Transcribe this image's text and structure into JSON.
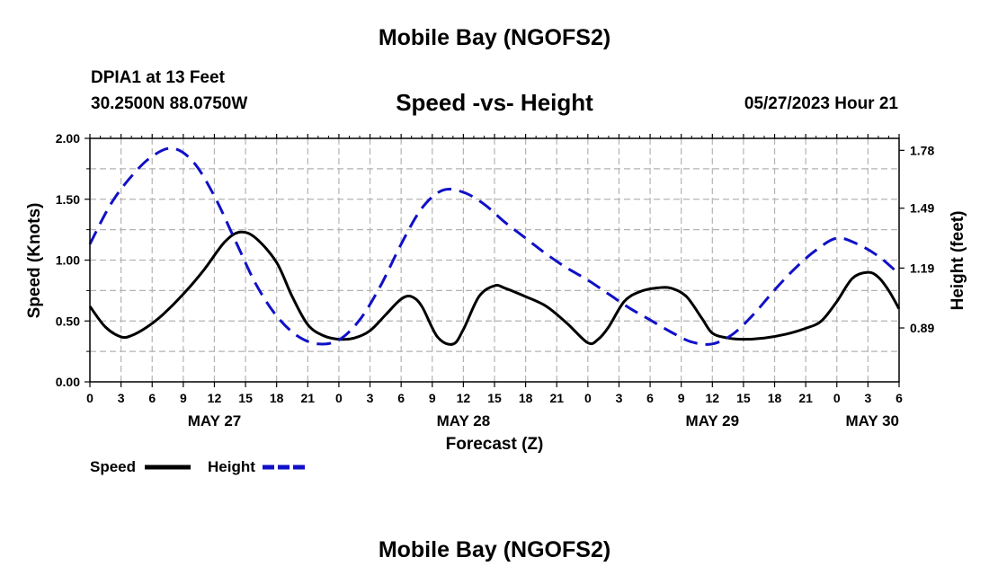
{
  "page": {
    "title": "Mobile Bay (NGOFS2)",
    "station": "DPIA1 at 13 Feet",
    "coords": "30.2500N  88.0750W",
    "timestamp": "05/27/2023 Hour 21",
    "footer_title": "Mobile Bay (NGOFS2)"
  },
  "chart_data": {
    "type": "line",
    "title": "Speed -vs- Height",
    "xlabel": "Forecast (Z)",
    "ylabel_left": "Speed (Knots)",
    "ylabel_right": "Height (feet)",
    "x_unit": "hours since 2023-05-27 00Z",
    "xlim": [
      0,
      78
    ],
    "ylim_left": [
      0,
      2
    ],
    "ylim_right": [
      0.62,
      1.84
    ],
    "grid": true,
    "x_tick_step_hours": 3,
    "x_tick_labels": [
      "0",
      "3",
      "6",
      "9",
      "12",
      "15",
      "18",
      "21",
      "0",
      "3",
      "6",
      "9",
      "12",
      "15",
      "18",
      "21",
      "0",
      "3",
      "6",
      "9",
      "12",
      "15",
      "18",
      "21",
      "0",
      "3",
      "6"
    ],
    "y_left_ticks": [
      0.0,
      0.5,
      1.0,
      1.5,
      2.0
    ],
    "y_left_tick_labels": [
      "0.00",
      "0.50",
      "1.00",
      "1.50",
      "2.00"
    ],
    "y_right_ticks": [
      0.89,
      1.19,
      1.49,
      1.78
    ],
    "y_right_tick_labels": [
      "0.89",
      "1.19",
      "1.49",
      "1.78"
    ],
    "date_labels": [
      {
        "text": "MAY 27",
        "hour": 12
      },
      {
        "text": "MAY 28",
        "hour": 36
      },
      {
        "text": "MAY 29",
        "hour": 60
      },
      {
        "text": "MAY 30",
        "hour": 78
      }
    ],
    "legend": [
      {
        "label": "Speed",
        "color": "#000000",
        "style": "solid"
      },
      {
        "label": "Height",
        "color": "#1010c8",
        "style": "dashed"
      }
    ],
    "series": [
      {
        "name": "Speed",
        "axis": "left",
        "color": "#000000",
        "x": [
          0,
          1.5,
          3,
          4,
          5.5,
          7,
          9,
          11,
          13,
          14.5,
          16,
          18,
          19.5,
          21,
          22.5,
          24,
          25.5,
          27,
          28.5,
          30,
          31,
          32,
          33.5,
          35,
          36,
          37.5,
          39,
          40,
          42,
          44,
          46,
          48,
          49,
          50,
          51.5,
          53,
          54.5,
          56,
          57.5,
          59,
          60,
          61.5,
          63,
          65,
          67,
          69,
          70.5,
          72,
          73.5,
          75,
          76,
          77,
          78
        ],
        "y": [
          0.62,
          0.45,
          0.37,
          0.38,
          0.45,
          0.55,
          0.72,
          0.92,
          1.15,
          1.23,
          1.18,
          0.98,
          0.7,
          0.47,
          0.38,
          0.35,
          0.36,
          0.42,
          0.55,
          0.68,
          0.7,
          0.62,
          0.37,
          0.31,
          0.43,
          0.7,
          0.79,
          0.77,
          0.7,
          0.62,
          0.48,
          0.32,
          0.35,
          0.45,
          0.66,
          0.74,
          0.77,
          0.77,
          0.7,
          0.52,
          0.4,
          0.36,
          0.35,
          0.36,
          0.39,
          0.44,
          0.5,
          0.66,
          0.85,
          0.9,
          0.86,
          0.75,
          0.6
        ]
      },
      {
        "name": "Height",
        "axis": "right",
        "color": "#1010c8",
        "x": [
          0,
          2,
          4,
          6,
          8,
          10,
          12,
          14,
          16,
          18,
          20,
          22,
          24,
          26,
          28,
          30,
          32,
          34,
          36,
          38,
          40,
          42,
          44,
          46,
          48,
          50,
          52,
          54,
          56,
          58,
          60,
          62,
          64,
          66,
          68,
          70,
          72,
          74,
          76,
          78
        ],
        "y": [
          1.31,
          1.51,
          1.65,
          1.75,
          1.79,
          1.72,
          1.55,
          1.33,
          1.11,
          0.95,
          0.85,
          0.81,
          0.83,
          0.93,
          1.1,
          1.31,
          1.49,
          1.58,
          1.57,
          1.51,
          1.42,
          1.34,
          1.26,
          1.19,
          1.13,
          1.06,
          0.99,
          0.93,
          0.87,
          0.82,
          0.81,
          0.86,
          0.96,
          1.08,
          1.19,
          1.28,
          1.34,
          1.31,
          1.25,
          1.16
        ]
      }
    ]
  }
}
